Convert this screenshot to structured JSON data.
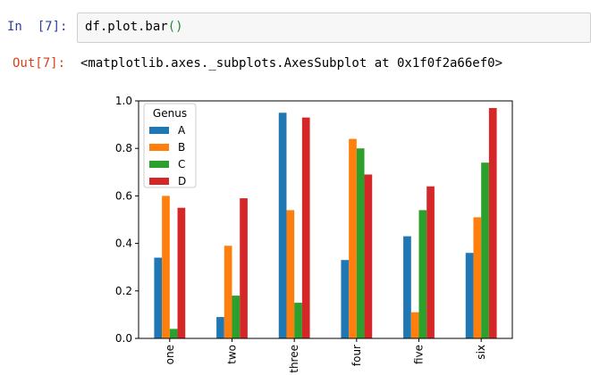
{
  "cell": {
    "in_prompt": "In  [7]:",
    "code_prefix": "df.plot.bar",
    "code_suffix": "()",
    "out_prompt": "Out[7]:",
    "output_text": "<matplotlib.axes._subplots.AxesSubplot at 0x1f0f2a66ef0>"
  },
  "colors": {
    "A": "#1f77b4",
    "B": "#ff7f0e",
    "C": "#2ca02c",
    "D": "#d62728"
  },
  "chart_data": {
    "type": "bar",
    "categories": [
      "one",
      "two",
      "three",
      "four",
      "five",
      "six"
    ],
    "series": [
      {
        "name": "A",
        "values": [
          0.34,
          0.09,
          0.95,
          0.33,
          0.43,
          0.36
        ]
      },
      {
        "name": "B",
        "values": [
          0.6,
          0.39,
          0.54,
          0.84,
          0.11,
          0.51
        ]
      },
      {
        "name": "C",
        "values": [
          0.04,
          0.18,
          0.15,
          0.8,
          0.54,
          0.74
        ]
      },
      {
        "name": "D",
        "values": [
          0.55,
          0.59,
          0.93,
          0.69,
          0.64,
          0.97
        ]
      }
    ],
    "legend_title": "Genus",
    "legend_position": "upper-left",
    "ylim": [
      0,
      1.0
    ],
    "yticks": [
      "0.0",
      "0.2",
      "0.4",
      "0.6",
      "0.8",
      "1.0"
    ],
    "grid": false
  }
}
